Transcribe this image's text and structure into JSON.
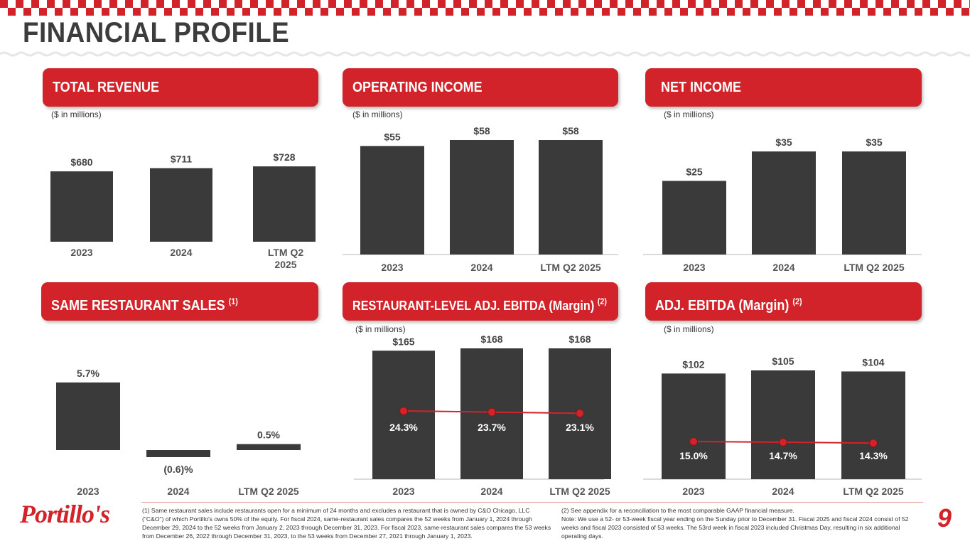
{
  "page": {
    "title": "FINANCIAL PROFILE",
    "number": "9",
    "logo": "Portillo's"
  },
  "colors": {
    "accent": "#d2232a",
    "bar": "#3a3a3a",
    "line": "#d2232a"
  },
  "panels": {
    "total_revenue": {
      "title": "TOTAL REVENUE",
      "unit": "($ in millions)"
    },
    "operating_income": {
      "title": "OPERATING INCOME",
      "unit": "($ in millions)"
    },
    "net_income": {
      "title": "NET INCOME",
      "unit": "($ in millions)"
    },
    "same_restaurant_sales": {
      "title": "SAME RESTAURANT SALES",
      "sup": "(1)"
    },
    "restaurant_ebitda": {
      "title": "RESTAURANT-LEVEL ADJ. EBITDA (Margin)",
      "sup": "(2)",
      "unit": "($ in millions)"
    },
    "adj_ebitda": {
      "title": "ADJ. EBITDA (Margin)",
      "sup": "(2)",
      "unit": "($ in millions)"
    }
  },
  "chart_data": [
    {
      "id": "total_revenue",
      "type": "bar",
      "categories": [
        "2023",
        "2024",
        "LTM Q2 2025"
      ],
      "values": [
        680,
        711,
        728
      ],
      "labels": [
        "$680",
        "$711",
        "$728"
      ]
    },
    {
      "id": "operating_income",
      "type": "bar",
      "categories": [
        "2023",
        "2024",
        "LTM Q2 2025"
      ],
      "values": [
        55,
        58,
        58
      ],
      "labels": [
        "$55",
        "$58",
        "$58"
      ]
    },
    {
      "id": "net_income",
      "type": "bar",
      "categories": [
        "2023",
        "2024",
        "LTM Q2 2025"
      ],
      "values": [
        25,
        35,
        35
      ],
      "labels": [
        "$25",
        "$35",
        "$35"
      ]
    },
    {
      "id": "same_restaurant_sales",
      "type": "bar",
      "categories": [
        "2023",
        "2024",
        "LTM Q2 2025"
      ],
      "values": [
        5.7,
        -0.6,
        0.5
      ],
      "labels": [
        "5.7%",
        "(0.6)%",
        "0.5%"
      ]
    },
    {
      "id": "restaurant_ebitda",
      "type": "bar",
      "categories": [
        "2023",
        "2024",
        "LTM Q2 2025"
      ],
      "values": [
        165,
        168,
        168
      ],
      "labels": [
        "$165",
        "$168",
        "$168"
      ],
      "margin": [
        24.3,
        23.7,
        23.1
      ],
      "margin_labels": [
        "24.3%",
        "23.7%",
        "23.1%"
      ]
    },
    {
      "id": "adj_ebitda",
      "type": "bar",
      "categories": [
        "2023",
        "2024",
        "LTM Q2 2025"
      ],
      "values": [
        102,
        105,
        104
      ],
      "labels": [
        "$102",
        "$105",
        "$104"
      ],
      "margin": [
        15.0,
        14.7,
        14.3
      ],
      "margin_labels": [
        "15.0%",
        "14.7%",
        "14.3%"
      ]
    }
  ],
  "footnotes": {
    "left": "(1) Same restaurant sales include restaurants open for a minimum of 24 months and excludes a restaurant that is owned by C&O Chicago, LLC (\"C&O\") of which Portillo's owns 50% of the equity. For fiscal 2024, same-restaurant sales compares the 52 weeks from January 1, 2024 through December 29, 2024 to the 52 weeks from January 2, 2023 through December 31, 2023. For fiscal 2023, same-restaurant sales compares the 53 weeks from December 26, 2022 through December 31, 2023, to the 53 weeks from December 27, 2021 through January 1, 2023.",
    "right": "(2) See appendix for a reconciliation to the most comparable GAAP financial measure.\nNote: We use a 52- or 53-week fiscal year ending on the Sunday prior to December 31. Fiscal 2025 and fiscal 2024 consist of 52 weeks and fiscal 2023 consisted of 53 weeks. The 53rd week in fiscal 2023 included Christmas Day, resulting in six additional operating days."
  }
}
